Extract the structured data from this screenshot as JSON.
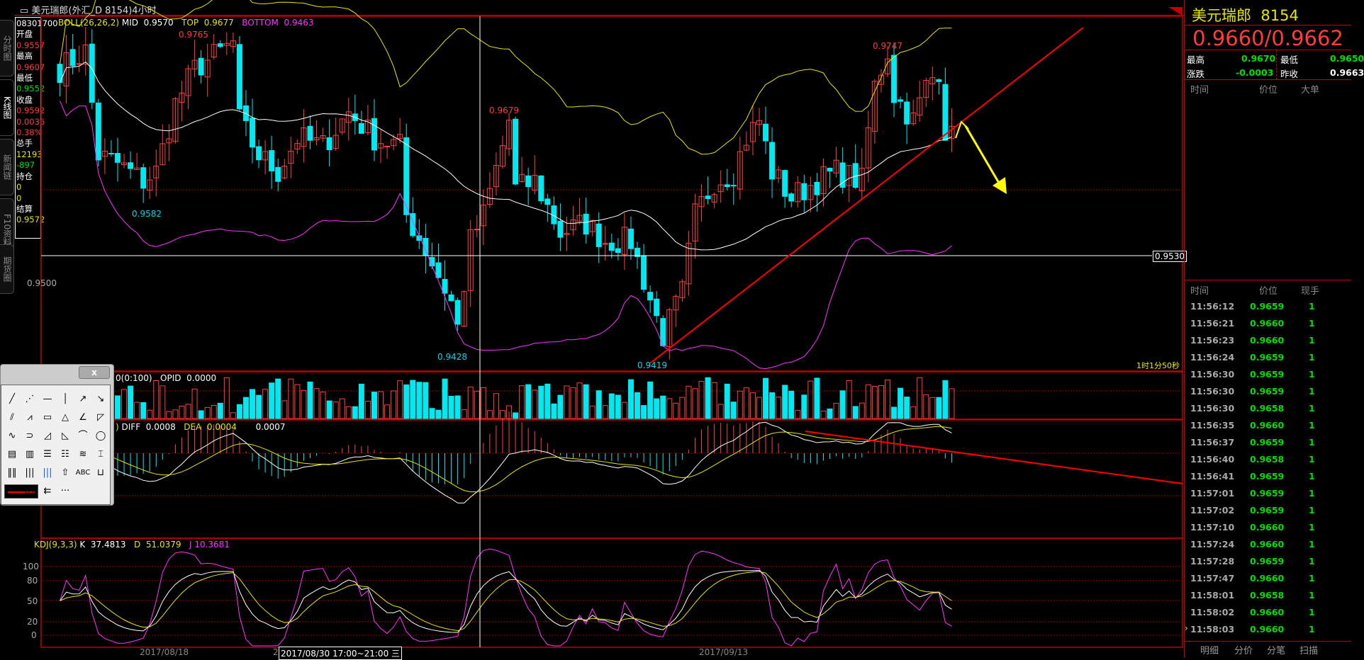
{
  "title": "美元瑞郎(外汇_D 8154)4小时",
  "side_tabs": [
    "分时图",
    "K线图",
    "新闻链",
    "F10资料",
    "期货圈"
  ],
  "info": {
    "time": "08301700",
    "open_label": "开盘",
    "open": "0.9557",
    "high_label": "最高",
    "high": "0.9607",
    "low_label": "最低",
    "low": "0.9552",
    "close_label": "收盘",
    "close": "0.9592",
    "change": "0.0036",
    "change_pct": "0.38%",
    "vol_label": "总手",
    "vol": "12193",
    "vol_change": "-897",
    "oi_label": "持仓",
    "oi": "0",
    "oi_change": "0",
    "settle_label": "结算",
    "settle": "0.9572"
  },
  "boll": {
    "name": "BOLL(26,26,2)",
    "mid_label": "MID",
    "mid": "0.9570",
    "top_label": "TOP",
    "top": "0.9677",
    "bottom_label": "BOTTOM",
    "bottom": "0.9463"
  },
  "annotations": {
    "hi1": "0.9765",
    "hi2": "0.9679",
    "hi3": "0.9747",
    "lo1": "0.9582",
    "lo2": "0.9428",
    "lo3": "0.9419",
    "cross_price": "0.9530",
    "axis_price": "0.9500",
    "countdown": "1时1分50秒"
  },
  "volume": {
    "label": "0(0:100)",
    "opid_label": "OPID",
    "opid": "0.0000"
  },
  "macd": {
    "prefix": ")",
    "diff_label": "DIFF",
    "diff": "0.0008",
    "dea_label": "DEA",
    "dea": "0.0004",
    "macd": "0.0007"
  },
  "kdj": {
    "name": "KDJ(9,3,3)",
    "k_label": "K",
    "k": "37.4813",
    "d_label": "D",
    "d": "51.0379",
    "j_label": "J",
    "j": "10.3681",
    "ticks": [
      "100",
      "80",
      "50",
      "20",
      "0"
    ]
  },
  "dates": {
    "d1": "2017/08/18",
    "d2_prefix": "20",
    "cursor": "2017/08/30 17:00~21:00 三",
    "d3": "2017/09/13"
  },
  "chart_data": {
    "type": "candlestick",
    "bars": 140,
    "key_closes": [
      [
        0,
        0.9733
      ],
      [
        4,
        0.9752
      ],
      [
        6,
        0.9639
      ],
      [
        9,
        0.963
      ],
      [
        13,
        0.9611
      ],
      [
        15,
        0.9621
      ],
      [
        18,
        0.9695
      ],
      [
        21,
        0.9733
      ],
      [
        23,
        0.9742
      ],
      [
        27,
        0.9761
      ],
      [
        28,
        0.9677
      ],
      [
        31,
        0.9639
      ],
      [
        34,
        0.9621
      ],
      [
        37,
        0.9658
      ],
      [
        41,
        0.9649
      ],
      [
        45,
        0.9686
      ],
      [
        49,
        0.9658
      ],
      [
        53,
        0.9649
      ],
      [
        54,
        0.9574
      ],
      [
        57,
        0.9537
      ],
      [
        61,
        0.948
      ],
      [
        62,
        0.9452
      ],
      [
        64,
        0.9546
      ],
      [
        66,
        0.9574
      ],
      [
        69,
        0.9649
      ],
      [
        70,
        0.9677
      ],
      [
        71,
        0.9602
      ],
      [
        74,
        0.9611
      ],
      [
        78,
        0.9555
      ],
      [
        82,
        0.9565
      ],
      [
        85,
        0.9546
      ],
      [
        89,
        0.9546
      ],
      [
        93,
        0.9462
      ],
      [
        94,
        0.9443
      ],
      [
        97,
        0.949
      ],
      [
        99,
        0.9574
      ],
      [
        102,
        0.9611
      ],
      [
        105,
        0.9621
      ],
      [
        107,
        0.9658
      ],
      [
        109,
        0.9677
      ],
      [
        111,
        0.9621
      ],
      [
        114,
        0.9593
      ],
      [
        118,
        0.9611
      ],
      [
        121,
        0.9621
      ],
      [
        125,
        0.9611
      ],
      [
        126,
        0.9667
      ],
      [
        127,
        0.9714
      ],
      [
        129,
        0.9752
      ],
      [
        130,
        0.9705
      ],
      [
        133,
        0.9677
      ],
      [
        135,
        0.9714
      ],
      [
        137,
        0.9733
      ],
      [
        138,
        0.9667
      ],
      [
        139,
        0.9658
      ]
    ]
  },
  "toolbar": {
    "close": "x",
    "abc": "ABC",
    "more": "···"
  },
  "quote": {
    "name": "美元瑞郎",
    "code": "8154",
    "price": "0.9660/0.9662",
    "high_label": "最高",
    "high": "0.9670",
    "low_label": "最低",
    "low": "0.9650",
    "chg_label": "涨跌",
    "chg": "-0.0003",
    "prev_label": "昨收",
    "prev": "0.9663"
  },
  "bigorder_header": [
    "时间",
    "价位",
    "大单"
  ],
  "ticks_header": [
    "时间",
    "价位",
    "现手"
  ],
  "ticks": [
    [
      "11:56:12",
      "0.9659",
      "1"
    ],
    [
      "11:56:21",
      "0.9660",
      "1"
    ],
    [
      "11:56:23",
      "0.9660",
      "1"
    ],
    [
      "11:56:24",
      "0.9659",
      "1"
    ],
    [
      "11:56:30",
      "0.9659",
      "1"
    ],
    [
      "11:56:30",
      "0.9659",
      "1"
    ],
    [
      "11:56:30",
      "0.9658",
      "1"
    ],
    [
      "11:56:35",
      "0.9660",
      "1"
    ],
    [
      "11:56:37",
      "0.9659",
      "1"
    ],
    [
      "11:56:40",
      "0.9658",
      "1"
    ],
    [
      "11:56:41",
      "0.9659",
      "1"
    ],
    [
      "11:57:01",
      "0.9659",
      "1"
    ],
    [
      "11:57:02",
      "0.9659",
      "1"
    ],
    [
      "11:57:10",
      "0.9660",
      "1"
    ],
    [
      "11:57:24",
      "0.9660",
      "1"
    ],
    [
      "11:57:28",
      "0.9659",
      "1"
    ],
    [
      "11:57:47",
      "0.9660",
      "1"
    ],
    [
      "11:58:01",
      "0.9658",
      "1"
    ],
    [
      "11:58:02",
      "0.9660",
      "1"
    ],
    [
      "11:58:03",
      "0.9660",
      "1"
    ]
  ],
  "bottom_tabs": [
    "明细",
    "分价",
    "分笔",
    "扫描"
  ],
  "colors": {
    "up": "#ff4040",
    "down": "#00e8f0",
    "grid": "#c00000"
  }
}
